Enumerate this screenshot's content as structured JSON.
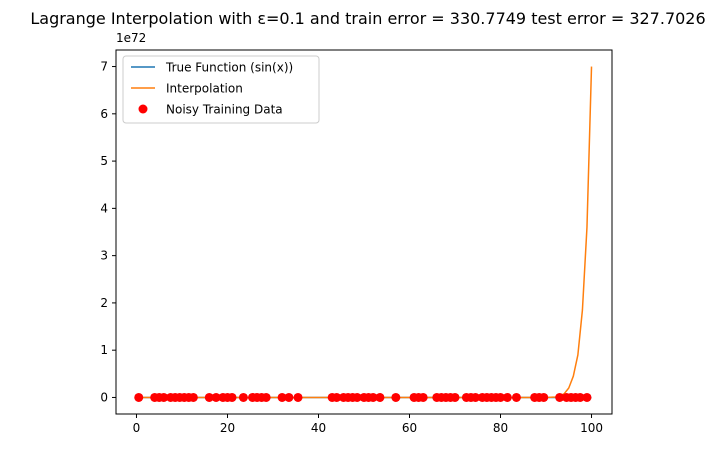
{
  "chart_data": {
    "type": "line",
    "title": "Lagrange Interpolation with ε=0.1 and train error =  330.7749 test error = 327.7026",
    "xlabel": "",
    "ylabel": "",
    "xlim": [
      -4.5,
      104.5
    ],
    "ylim": [
      -0.35,
      7.35
    ],
    "y_multiplier_label": "1e72",
    "x_ticks": [
      {
        "value": 0,
        "label": "0"
      },
      {
        "value": 20,
        "label": "20"
      },
      {
        "value": 40,
        "label": "40"
      },
      {
        "value": 60,
        "label": "60"
      },
      {
        "value": 80,
        "label": "80"
      },
      {
        "value": 100,
        "label": "100"
      }
    ],
    "y_ticks": [
      {
        "value": 0,
        "label": "0"
      },
      {
        "value": 1,
        "label": "1"
      },
      {
        "value": 2,
        "label": "2"
      },
      {
        "value": 3,
        "label": "3"
      },
      {
        "value": 4,
        "label": "4"
      },
      {
        "value": 5,
        "label": "5"
      },
      {
        "value": 6,
        "label": "6"
      },
      {
        "value": 7,
        "label": "7"
      }
    ],
    "grid": false,
    "legend_position": "top-left",
    "series": [
      {
        "name": "True Function (sin(x))",
        "kind": "line",
        "color": "#1f77b4",
        "x": [
          0,
          100
        ],
        "y": [
          0,
          0
        ]
      },
      {
        "name": "Interpolation",
        "kind": "line",
        "color": "#ff7f0e",
        "x": [
          0,
          90,
          92,
          93,
          94,
          95,
          96,
          97,
          98,
          99,
          100
        ],
        "y": [
          0,
          0,
          0.01,
          0.03,
          0.08,
          0.2,
          0.45,
          0.9,
          1.85,
          3.6,
          7.0
        ]
      },
      {
        "name": "Noisy Training Data",
        "kind": "scatter",
        "color": "#ff0000",
        "x": [
          0.5,
          4,
          5,
          6,
          7.5,
          8.5,
          9.5,
          10.5,
          11.5,
          12.5,
          16,
          17.5,
          19,
          20,
          21,
          23.5,
          25.5,
          26.5,
          27.5,
          28.5,
          32,
          33.5,
          35.5,
          43,
          44,
          45.5,
          46.5,
          47.5,
          48.5,
          50,
          51,
          52,
          53.5,
          57,
          61,
          62,
          63,
          66,
          67,
          68,
          69,
          70,
          72.5,
          73.5,
          74.5,
          76,
          77,
          78,
          79,
          80,
          81.5,
          83.5,
          87.5,
          88.5,
          89.5,
          93,
          94.5,
          95.5,
          96.5,
          97.5,
          99
        ],
        "y": [
          0,
          0,
          0,
          0,
          0,
          0,
          0,
          0,
          0,
          0,
          0,
          0,
          0,
          0,
          0,
          0,
          0,
          0,
          0,
          0,
          0,
          0,
          0,
          0,
          0,
          0,
          0,
          0,
          0,
          0,
          0,
          0,
          0,
          0,
          0,
          0,
          0,
          0,
          0,
          0,
          0,
          0,
          0,
          0,
          0,
          0,
          0,
          0,
          0,
          0,
          0,
          0,
          0,
          0,
          0,
          0,
          0,
          0,
          0,
          0,
          0
        ]
      }
    ]
  }
}
